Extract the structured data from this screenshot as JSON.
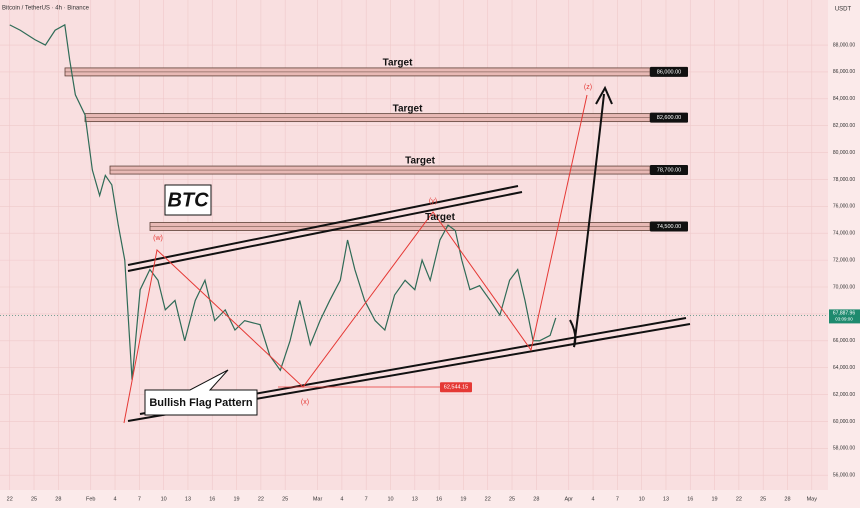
{
  "chart_data": {
    "type": "line",
    "title": "Bitcoin / TetherUS · 4h · Binance",
    "currency": "USDT",
    "xlim": [
      -1.2,
      101
    ],
    "ylim": [
      54900,
      91350
    ],
    "xticks": [
      {
        "value": 0,
        "label": "22"
      },
      {
        "value": 3,
        "label": "25"
      },
      {
        "value": 6,
        "label": "28"
      },
      {
        "value": 10,
        "label": "Feb"
      },
      {
        "value": 13,
        "label": "4"
      },
      {
        "value": 16,
        "label": "7"
      },
      {
        "value": 19,
        "label": "10"
      },
      {
        "value": 22,
        "label": "13"
      },
      {
        "value": 25,
        "label": "16"
      },
      {
        "value": 28,
        "label": "19"
      },
      {
        "value": 31,
        "label": "22"
      },
      {
        "value": 34,
        "label": "25"
      },
      {
        "value": 38,
        "label": "Mar"
      },
      {
        "value": 41,
        "label": "4"
      },
      {
        "value": 44,
        "label": "7"
      },
      {
        "value": 47,
        "label": "10"
      },
      {
        "value": 50,
        "label": "13"
      },
      {
        "value": 53,
        "label": "16"
      },
      {
        "value": 56,
        "label": "19"
      },
      {
        "value": 59,
        "label": "22"
      },
      {
        "value": 62,
        "label": "25"
      },
      {
        "value": 65,
        "label": "28"
      },
      {
        "value": 69,
        "label": "Apr"
      },
      {
        "value": 72,
        "label": "4"
      },
      {
        "value": 75,
        "label": "7"
      },
      {
        "value": 78,
        "label": "10"
      },
      {
        "value": 81,
        "label": "13"
      },
      {
        "value": 84,
        "label": "16"
      },
      {
        "value": 87,
        "label": "19"
      },
      {
        "value": 90,
        "label": "22"
      },
      {
        "value": 93,
        "label": "25"
      },
      {
        "value": 96,
        "label": "28"
      },
      {
        "value": 99,
        "label": "May"
      }
    ],
    "yticks": [
      {
        "value": 56000,
        "label": "56,000.00"
      },
      {
        "value": 58000,
        "label": "58,000.00"
      },
      {
        "value": 60000,
        "label": "60,000.00"
      },
      {
        "value": 62000,
        "label": "62,000.00"
      },
      {
        "value": 64000,
        "label": "64,000.00"
      },
      {
        "value": 66000,
        "label": "66,000.00"
      },
      {
        "value": 68000,
        "label": "68,000.00"
      },
      {
        "value": 70000,
        "label": "70,000.00"
      },
      {
        "value": 72000,
        "label": "72,000.00"
      },
      {
        "value": 74000,
        "label": "74,000.00"
      },
      {
        "value": 76000,
        "label": "76,000.00"
      },
      {
        "value": 78000,
        "label": "78,000.00"
      },
      {
        "value": 80000,
        "label": "80,000.00"
      },
      {
        "value": 82000,
        "label": "82,000.00"
      },
      {
        "value": 84000,
        "label": "84,000.00"
      },
      {
        "value": 86000,
        "label": "86,000.00"
      },
      {
        "value": 88000,
        "label": "88,000.00"
      }
    ],
    "grid": true,
    "series": [
      {
        "name": "BTCUSDT",
        "color": "#2f6b57",
        "x": [
          0,
          1.3,
          3.1,
          4.4,
          5.6,
          6.8,
          7.4,
          8.1,
          9.3,
          10.2,
          11.1,
          11.8,
          12.6,
          13.4,
          14.2,
          15.1,
          16.1,
          17.3,
          18.3,
          19.2,
          20.4,
          21.6,
          22.9,
          24.1,
          25.3,
          26.6,
          27.8,
          29.0,
          30.9,
          32.1,
          33.4,
          34.6,
          35.8,
          37.1,
          38.3,
          39.5,
          40.8,
          41.7,
          42.6,
          43.8,
          45.1,
          46.3,
          47.5,
          48.8,
          50.0,
          50.9,
          51.9,
          53.1,
          54.1,
          55.0,
          55.8,
          56.8,
          58.0,
          59.3,
          60.5,
          61.7,
          62.7,
          63.6,
          64.6,
          65.4,
          66.7,
          67.4
        ],
        "values": [
          89500,
          89100,
          88400,
          88000,
          89100,
          89500,
          86900,
          84300,
          82800,
          78700,
          76800,
          78300,
          77600,
          74600,
          72000,
          63100,
          69800,
          71300,
          70500,
          68300,
          69000,
          66000,
          69000,
          70500,
          67500,
          68300,
          66800,
          67500,
          67200,
          64900,
          63800,
          66000,
          69000,
          65700,
          67500,
          69000,
          70500,
          73500,
          71300,
          69000,
          67500,
          66800,
          69400,
          70500,
          69800,
          72000,
          70500,
          73500,
          74600,
          74200,
          72000,
          69800,
          70100,
          69000,
          67900,
          70500,
          71300,
          69000,
          66000,
          66000,
          66400,
          67700
        ]
      }
    ],
    "current_price": {
      "value": 67887.96,
      "label": "67,887.96"
    },
    "countdown": "03:09:00",
    "levels": [
      {
        "value": 86000,
        "label": "86,000.00",
        "text": "Target"
      },
      {
        "value": 82600,
        "label": "82,600.00",
        "text": "Target"
      },
      {
        "value": 78700,
        "label": "78,700.00",
        "text": "Target"
      },
      {
        "value": 74500,
        "label": "74,500.00",
        "text": "Target"
      }
    ],
    "low": {
      "value": 62544.15,
      "label": "62,544.15"
    },
    "symbol": "BTC",
    "pattern": "Bullish Flag Pattern",
    "waves": [
      "(w)",
      "(x)",
      "(y)",
      "(z)"
    ]
  }
}
